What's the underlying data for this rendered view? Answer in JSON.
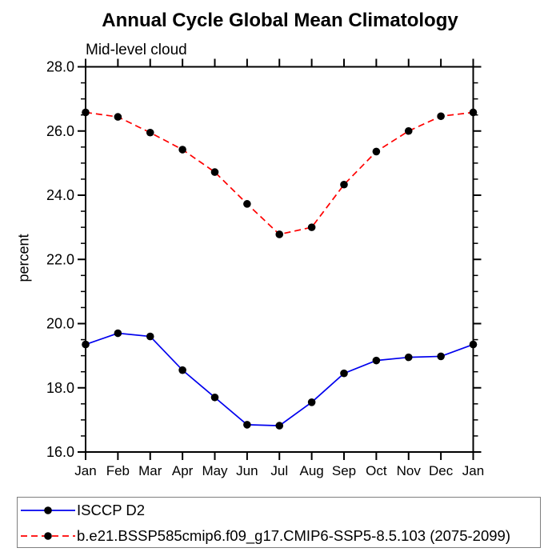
{
  "chart_data": {
    "type": "line",
    "title": "Annual Cycle Global Mean Climatology",
    "subtitle": "Mid-level cloud",
    "ylabel": "percent",
    "categories": [
      "Jan",
      "Feb",
      "Mar",
      "Apr",
      "May",
      "Jun",
      "Jul",
      "Aug",
      "Sep",
      "Oct",
      "Nov",
      "Dec",
      "Jan"
    ],
    "ylim": [
      16.0,
      28.0
    ],
    "ytick_interval": 2.0,
    "yminor_interval": 0.5,
    "ytick_labels": [
      "16.0",
      "18.0",
      "20.0",
      "22.0",
      "24.0",
      "26.0",
      "28.0"
    ],
    "grid": false,
    "legend_position": "bottom-left-box",
    "axis_color": "#000000",
    "marker_color": "#000000",
    "series": [
      {
        "name": "ISCCP D2",
        "color": "#0000ee",
        "style": "solid",
        "marker": "black-dot",
        "values": [
          19.35,
          19.7,
          19.6,
          18.55,
          17.7,
          16.85,
          16.82,
          17.55,
          18.45,
          18.85,
          18.95,
          18.98,
          19.35
        ]
      },
      {
        "name": "b.e21.BSSP585cmip6.f09_g17.CMIP6-SSP5-8.5.103 (2075-2099)",
        "color": "#ff0000",
        "style": "dashed",
        "marker": "black-dot",
        "values": [
          26.58,
          26.44,
          25.95,
          25.42,
          24.72,
          23.73,
          22.78,
          23.0,
          24.33,
          25.36,
          26.0,
          26.46,
          26.58
        ]
      }
    ]
  }
}
